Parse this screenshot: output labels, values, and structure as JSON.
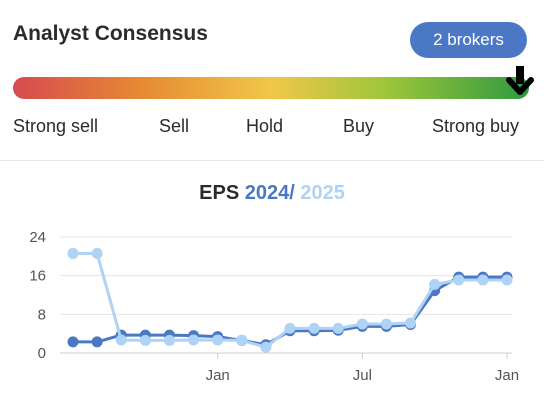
{
  "consensus": {
    "title": "Analyst Consensus",
    "badge": "2 brokers",
    "scale": [
      "Strong sell",
      "Sell",
      "Hold",
      "Buy",
      "Strong buy"
    ],
    "selected": "Strong buy"
  },
  "chart_title": {
    "label": "EPS",
    "year1": "2024",
    "separator": "/",
    "year2": "2025"
  },
  "colors": {
    "accent": "#4a78c4",
    "series_2024": "#4a78c4",
    "series_2025": "#aed3f5"
  },
  "chart_data": {
    "type": "line",
    "ylim": [
      0,
      24
    ],
    "yticks": [
      "0",
      "8",
      "16",
      "24"
    ],
    "xticks": [
      {
        "label": "Jan",
        "at": 6
      },
      {
        "label": "Jul",
        "at": 12
      },
      {
        "label": "Jan",
        "at": 18
      }
    ],
    "x": [
      0,
      1,
      2,
      3,
      4,
      5,
      6,
      7,
      8,
      9,
      10,
      11,
      12,
      13,
      14,
      15,
      16,
      17,
      18
    ],
    "series": [
      {
        "name": "2024",
        "values": [
          2.3,
          2.3,
          3.7,
          3.7,
          3.7,
          3.6,
          3.4,
          2.6,
          1.7,
          4.6,
          4.6,
          4.7,
          5.5,
          5.5,
          5.9,
          12.9,
          15.7,
          15.7,
          15.7
        ]
      },
      {
        "name": "2025",
        "values": [
          20.6,
          20.6,
          2.7,
          2.6,
          2.6,
          2.7,
          2.7,
          2.6,
          1.2,
          5.1,
          5.1,
          5.1,
          6.0,
          6.0,
          6.2,
          14.2,
          15.1,
          15.1,
          15.1
        ]
      }
    ],
    "grid": true
  }
}
